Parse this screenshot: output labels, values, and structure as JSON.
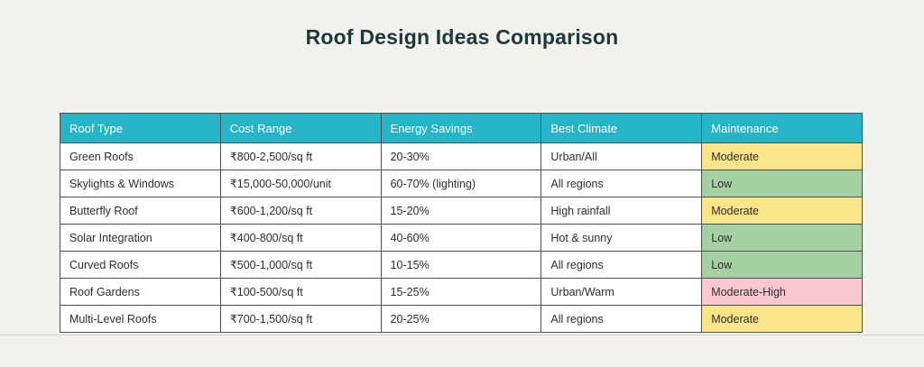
{
  "page": {
    "title": "Roof Design Ideas Comparison",
    "background_color": "#F2F1EB"
  },
  "table": {
    "header_bg_color": "#26B5C7",
    "header_text_color": "#FFFFFF",
    "border_color": "#47534F",
    "columns": [
      "Roof Type",
      "Cost Range",
      "Energy Savings",
      "Best Climate",
      "Maintenance"
    ],
    "maintenance_colors": {
      "Moderate": "#FCE588",
      "Low": "#A6D0A3",
      "Moderate-High": "#FAC8CE"
    },
    "rows": [
      {
        "roof_type": "Green Roofs",
        "cost_range": "₹800-2,500/sq ft",
        "energy_savings": "20-30%",
        "best_climate": "Urban/All",
        "maintenance": "Moderate",
        "maintenance_color": "#FCE588"
      },
      {
        "roof_type": "Skylights & Windows",
        "cost_range": "₹15,000-50,000/unit",
        "energy_savings": "60-70% (lighting)",
        "best_climate": "All regions",
        "maintenance": "Low",
        "maintenance_color": "#A6D0A3"
      },
      {
        "roof_type": "Butterfly Roof",
        "cost_range": "₹600-1,200/sq ft",
        "energy_savings": "15-20%",
        "best_climate": "High rainfall",
        "maintenance": "Moderate",
        "maintenance_color": "#FCE588"
      },
      {
        "roof_type": "Solar Integration",
        "cost_range": "₹400-800/sq ft",
        "energy_savings": "40-60%",
        "best_climate": "Hot & sunny",
        "maintenance": "Low",
        "maintenance_color": "#A6D0A3"
      },
      {
        "roof_type": "Curved Roofs",
        "cost_range": "₹500-1,000/sq ft",
        "energy_savings": "10-15%",
        "best_climate": "All regions",
        "maintenance": "Low",
        "maintenance_color": "#A6D0A3"
      },
      {
        "roof_type": "Roof Gardens",
        "cost_range": "₹100-500/sq ft",
        "energy_savings": "15-25%",
        "best_climate": "Urban/Warm",
        "maintenance": "Moderate-High",
        "maintenance_color": "#FAC8CE"
      },
      {
        "roof_type": "Multi-Level Roofs",
        "cost_range": "₹700-1,500/sq ft",
        "energy_savings": "20-25%",
        "best_climate": "All regions",
        "maintenance": "Moderate",
        "maintenance_color": "#FCE588"
      }
    ]
  }
}
